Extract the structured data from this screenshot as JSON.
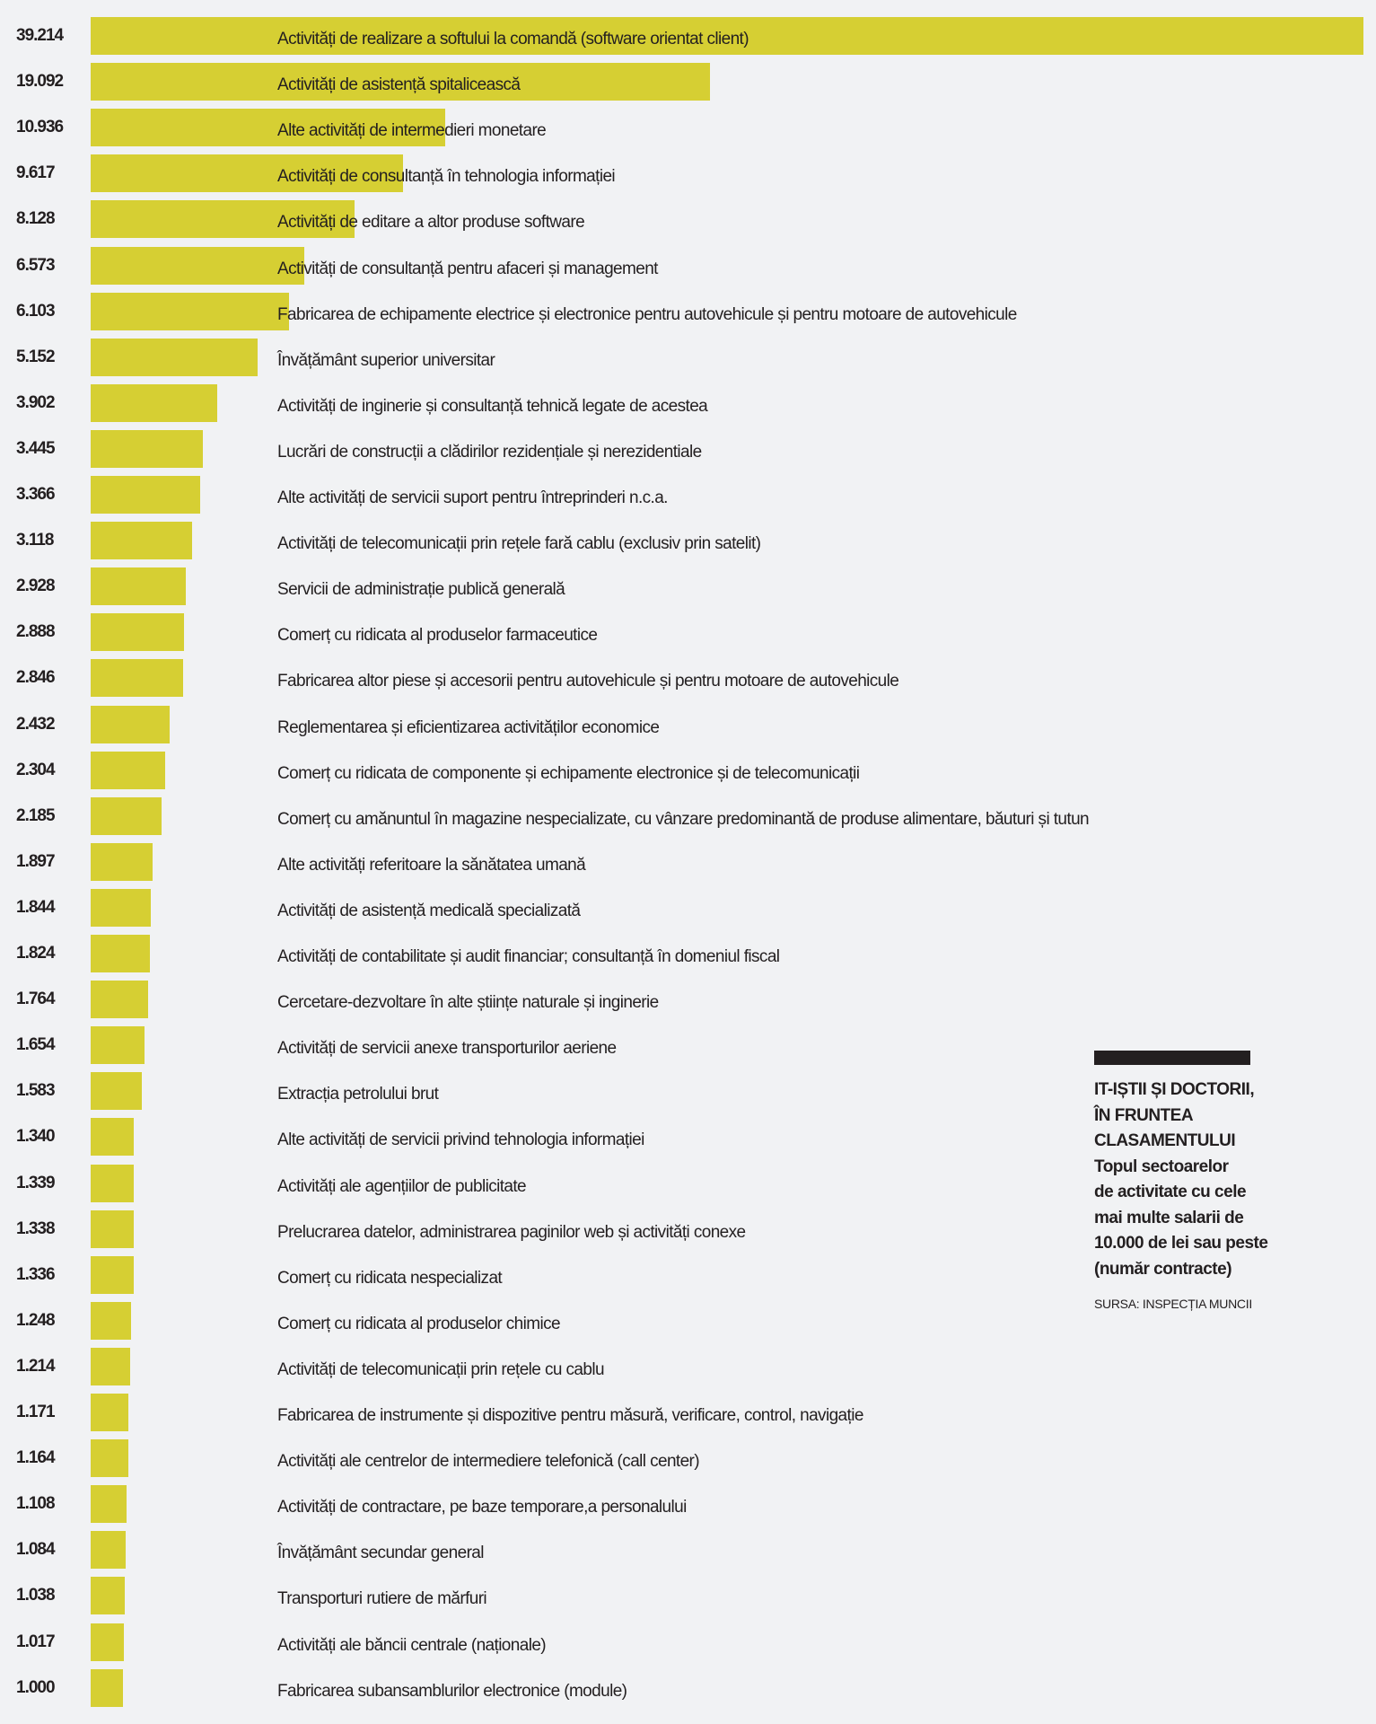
{
  "chart_data": {
    "type": "bar",
    "orientation": "horizontal",
    "title": "IT-IȘTII ȘI DOCTORII, ÎN FRUNTEA CLASAMENTULUI",
    "subtitle_lines": [
      "Topul sectoarelor",
      "de activitate cu cele",
      "mai multe salarii de",
      "10.000 de lei sau peste",
      "(număr contracte)"
    ],
    "source": "SURSA: INSPECȚIA MUNCII",
    "color": "#d6cf33",
    "xlim": [
      0,
      39214
    ],
    "categories": [
      "Activități de realizare a softului la comandă (software orientat client)",
      "Activități de asistență spitalicească",
      "Alte activități de intermedieri monetare",
      "Activități de consultanță în tehnologia informației",
      "Activități de editare a altor produse software",
      "Activități de consultanță pentru afaceri și management",
      "Fabricarea de echipamente electrice și electronice pentru autovehicule și pentru motoare de autovehicule",
      "Învățământ superior universitar",
      "Activități de inginerie și consultanță tehnică legate de acestea",
      "Lucrări de construcții a clădirilor rezidențiale și nerezidentiale",
      "Alte activități de servicii suport pentru întreprinderi n.c.a.",
      "Activități de telecomunicații prin rețele fară cablu (exclusiv prin satelit)",
      "Servicii  de administrație publică generală",
      "Comerț cu ridicata al produselor farmaceutice",
      "Fabricarea altor piese și accesorii pentru autovehicule și pentru motoare de autovehicule",
      "Reglementarea și eficientizarea activităților economice",
      "Comerț cu ridicata de componente și echipamente electronice și de telecomunicații",
      "Comerț cu amănuntul în magazine nespecializate, cu vânzare predominantă de produse alimentare,  băuturi și tutun",
      "Alte activități referitoare la sănătatea umană",
      "Activități de asistență medicală specializată",
      "Activități de contabilitate și audit financiar; consultanță în domeniul fiscal",
      "Cercetare-dezvoltare în alte științe naturale și inginerie",
      "Activități de servicii anexe transporturilor aeriene",
      "Extracția petrolului brut",
      "Alte activități de servicii privind tehnologia informației",
      "Activități ale agențiilor de publicitate",
      "Prelucrarea datelor, administrarea paginilor web și activități conexe",
      "Comerț cu ridicata nespecializat",
      "Comerț cu ridicata al produselor chimice",
      "Activități de telecomunicații prin rețele cu cablu",
      "Fabricarea de instrumente și dispozitive pentru măsură, verificare, control, navigație",
      "Activități ale centrelor de intermediere telefonică (call center)",
      "Activități de contractare, pe baze temporare,a personalului",
      "Învățământ secundar general",
      "Transporturi rutiere de mărfuri",
      "Activități ale băncii centrale (naționale)",
      "Fabricarea subansamblurilor electronice (module)"
    ],
    "values": [
      39214,
      19092,
      10936,
      9617,
      8128,
      6573,
      6103,
      5152,
      3902,
      3445,
      3366,
      3118,
      2928,
      2888,
      2846,
      2432,
      2304,
      2185,
      1897,
      1844,
      1824,
      1764,
      1654,
      1583,
      1340,
      1339,
      1338,
      1336,
      1248,
      1214,
      1171,
      1164,
      1108,
      1084,
      1038,
      1017,
      1000
    ],
    "value_labels": [
      "39.214",
      "19.092",
      "10.936",
      "9.617",
      "8.128",
      "6.573",
      "6.103",
      "5.152",
      "3.902",
      "3.445",
      "3.366",
      "3.118",
      "2.928",
      "2.888",
      "2.846",
      "2.432",
      "2.304",
      "2.185",
      "1.897",
      "1.844",
      "1.824",
      "1.764",
      "1.654",
      "1.583",
      "1.340",
      "1.339",
      "1.338",
      "1.336",
      "1.248",
      "1.214",
      "1.171",
      "1.164",
      "1.108",
      "1.084",
      "1.038",
      "1.017",
      "1.000"
    ]
  }
}
